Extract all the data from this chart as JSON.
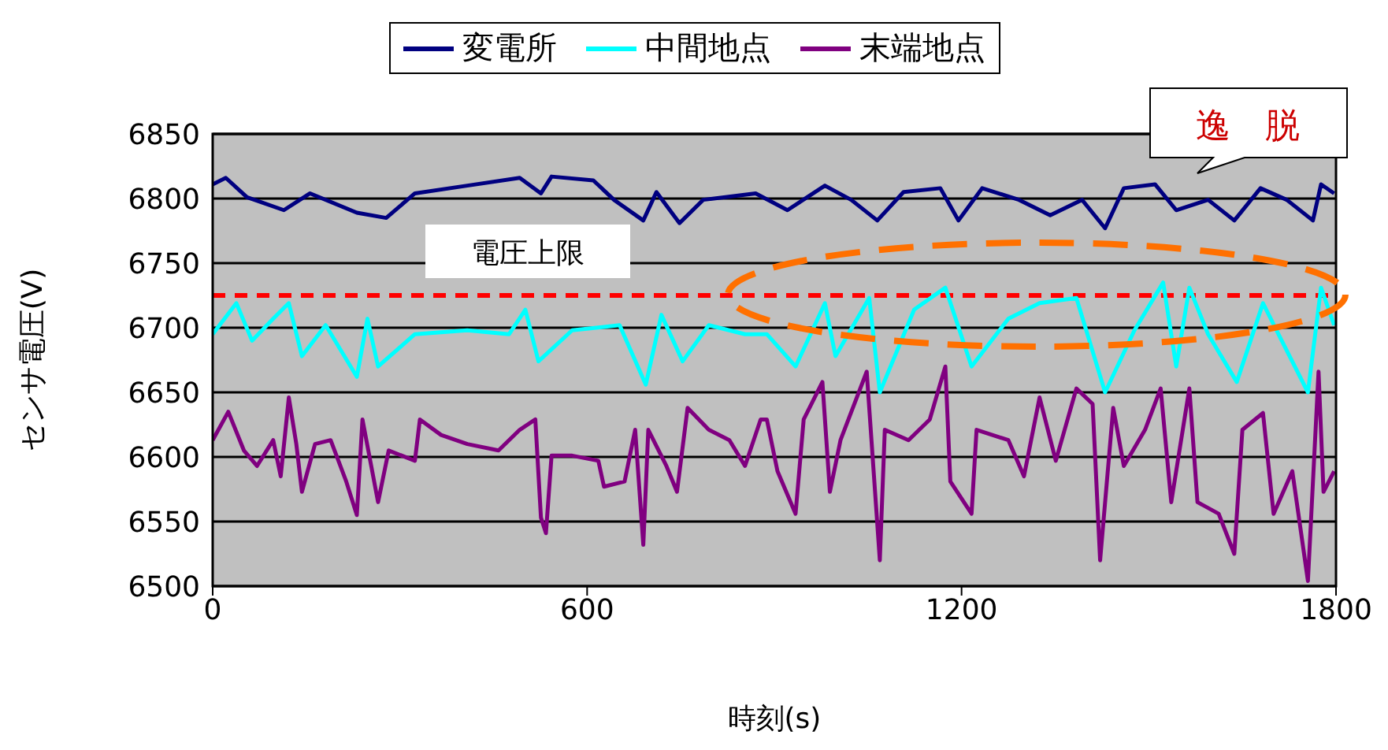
{
  "chart_data": {
    "type": "line",
    "xlabel": "時刻(s)",
    "ylabel": "センサ電圧(V)",
    "xlim": [
      0,
      1800
    ],
    "xticks": [
      0,
      600,
      1200,
      1800
    ],
    "ylim": [
      6500,
      6850
    ],
    "yticks": [
      6500,
      6550,
      6600,
      6650,
      6700,
      6750,
      6800,
      6850
    ],
    "grid": "y",
    "legend": "top",
    "marker": "none",
    "annotations": [
      "逸　脱"
    ],
    "ref_lines": [
      {
        "axis": "y",
        "value": 6725,
        "label": "電圧上限",
        "color": "#ff0000",
        "line_style": "dashed"
      }
    ],
    "series": [
      {
        "name": "変電所",
        "color": "#000080",
        "x": [
          0,
          21,
          55,
          114,
          156,
          231,
          278,
          324,
          408,
          492,
          526,
          543,
          610,
          643,
          690,
          711,
          748,
          786,
          870,
          921,
          981,
          1023,
          1065,
          1107,
          1166,
          1195,
          1233,
          1292,
          1342,
          1393,
          1430,
          1460,
          1510,
          1544,
          1595,
          1637,
          1679,
          1721,
          1763,
          1776,
          1797
        ],
        "values": [
          6811,
          6816,
          6801,
          6791,
          6804,
          6789,
          6785,
          6804,
          6810,
          6816,
          6804,
          6817,
          6814,
          6799,
          6783,
          6805,
          6781,
          6799,
          6804,
          6791,
          6810,
          6799,
          6783,
          6805,
          6808,
          6783,
          6808,
          6799,
          6787,
          6799,
          6777,
          6808,
          6811,
          6791,
          6799,
          6783,
          6808,
          6799,
          6783,
          6811,
          6804
        ]
      },
      {
        "name": "中間地点",
        "color": "#00ffff",
        "x": [
          0,
          38,
          63,
          97,
          122,
          143,
          181,
          231,
          248,
          265,
          324,
          408,
          475,
          501,
          522,
          576,
          652,
          694,
          719,
          753,
          795,
          853,
          888,
          934,
          981,
          998,
          1052,
          1069,
          1124,
          1174,
          1216,
          1275,
          1325,
          1384,
          1430,
          1477,
          1523,
          1544,
          1565,
          1595,
          1641,
          1683,
          1713,
          1755,
          1776,
          1797
        ],
        "values": [
          6695,
          6719,
          6690,
          6707,
          6719,
          6678,
          6702,
          6662,
          6707,
          6670,
          6695,
          6698,
          6695,
          6714,
          6674,
          6698,
          6702,
          6656,
          6710,
          6674,
          6702,
          6695,
          6695,
          6670,
          6719,
          6678,
          6723,
          6650,
          6714,
          6731,
          6670,
          6707,
          6719,
          6723,
          6650,
          6698,
          6735,
          6670,
          6731,
          6695,
          6658,
          6719,
          6690,
          6650,
          6731,
          6702
        ]
      },
      {
        "name": "末端地点",
        "color": "#800080",
        "x": [
          0,
          25,
          50,
          71,
          97,
          109,
          122,
          134,
          143,
          164,
          189,
          214,
          231,
          240,
          265,
          282,
          324,
          332,
          366,
          408,
          458,
          492,
          517,
          526,
          534,
          543,
          576,
          618,
          627,
          660,
          677,
          690,
          698,
          727,
          744,
          761,
          795,
          828,
          853,
          878,
          888,
          905,
          934,
          947,
          977,
          989,
          1006,
          1048,
          1069,
          1077,
          1115,
          1149,
          1174,
          1182,
          1216,
          1224,
          1275,
          1300,
          1325,
          1351,
          1384,
          1410,
          1422,
          1443,
          1460,
          1494,
          1519,
          1536,
          1565,
          1578,
          1612,
          1637,
          1650,
          1683,
          1700,
          1730,
          1755,
          1772,
          1780,
          1797
        ],
        "values": [
          6613,
          6635,
          6605,
          6593,
          6613,
          6585,
          6646,
          6610,
          6573,
          6610,
          6613,
          6581,
          6555,
          6629,
          6565,
          6605,
          6597,
          6629,
          6617,
          6610,
          6605,
          6621,
          6629,
          6553,
          6541,
          6601,
          6601,
          6597,
          6577,
          6581,
          6621,
          6532,
          6621,
          6593,
          6573,
          6638,
          6621,
          6613,
          6593,
          6629,
          6629,
          6589,
          6556,
          6629,
          6658,
          6573,
          6613,
          6666,
          6520,
          6621,
          6613,
          6629,
          6670,
          6581,
          6556,
          6621,
          6613,
          6585,
          6646,
          6597,
          6653,
          6641,
          6520,
          6638,
          6593,
          6621,
          6653,
          6565,
          6653,
          6565,
          6556,
          6525,
          6621,
          6634,
          6556,
          6589,
          6504,
          6666,
          6573,
          6589
        ]
      }
    ]
  }
}
